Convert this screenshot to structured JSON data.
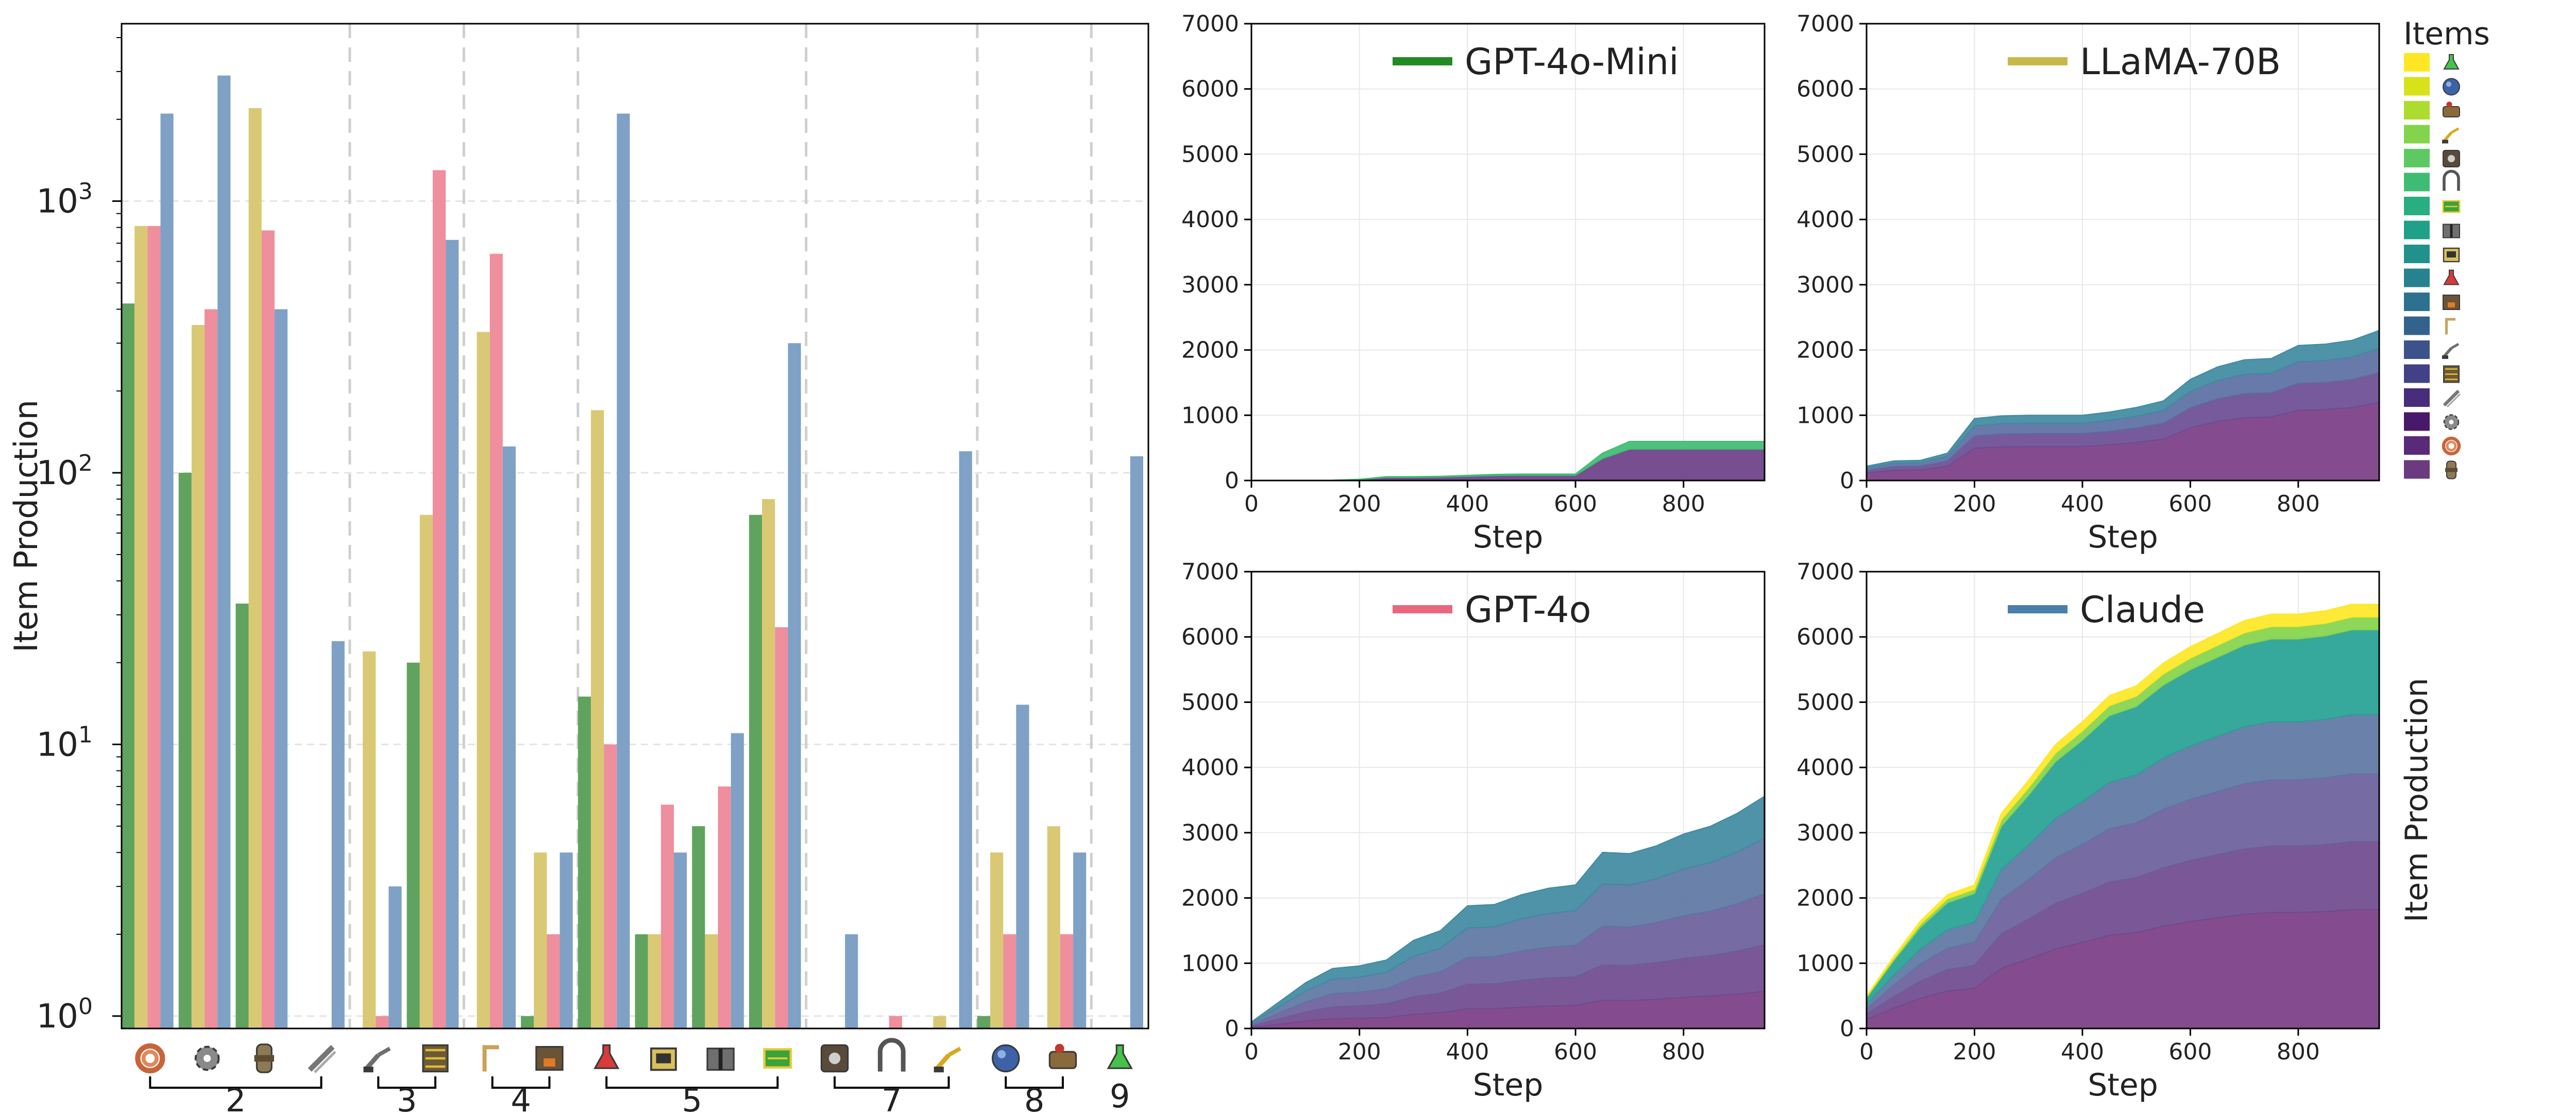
{
  "colors": {
    "GPT-4o-Mini": "#60a35e",
    "LLaMA-70B": "#d9c975",
    "GPT-4o": "#ef8e9d",
    "Claude": "#7fa1c6",
    "legend_GPT-4o-Mini": "#228b22",
    "legend_LLaMA-70B": "#c8b84a",
    "legend_GPT-4o": "#e8677d",
    "legend_Claude": "#4a7eab"
  },
  "chart_data": [
    {
      "type": "bar",
      "ylabel": "Item Production",
      "yscale": "log",
      "ylim": [
        0.9,
        4500
      ],
      "ytick_labels": [
        "10^0",
        "10^1",
        "10^2",
        "10^3"
      ],
      "series_order": [
        "GPT-4o-Mini",
        "LLaMA-70B",
        "GPT-4o",
        "Claude"
      ],
      "categories": [
        "copper-cable-icon",
        "iron-gear-wheel-icon",
        "pipe-icon",
        "iron-stick-icon",
        "inserter-icon",
        "transport-belt-icon",
        "burner-mining-drill-icon",
        "stone-furnace-icon",
        "automation-science-pack-icon",
        "lab-icon",
        "electric-mining-drill-icon",
        "electronic-circuit-icon",
        "assembling-machine-icon",
        "offshore-pump-icon",
        "fast-inserter-icon",
        "steam-engine-icon",
        "boiler-icon",
        "logistic-science-pack-icon"
      ],
      "groups": [
        {
          "label": "2",
          "first": 0,
          "last": 3
        },
        {
          "label": "3",
          "first": 4,
          "last": 5
        },
        {
          "label": "4",
          "first": 6,
          "last": 7
        },
        {
          "label": "5",
          "first": 8,
          "last": 11
        },
        {
          "label": "7",
          "first": 12,
          "last": 14
        },
        {
          "label": "8",
          "first": 15,
          "last": 16
        },
        {
          "label": "9",
          "first": 17,
          "last": 17
        }
      ],
      "series": [
        {
          "name": "GPT-4o-Mini",
          "values": [
            420,
            100,
            33,
            null,
            null,
            20,
            null,
            1,
            15,
            2,
            5,
            70,
            null,
            null,
            null,
            1,
            null,
            null
          ]
        },
        {
          "name": "LLaMA-70B",
          "values": [
            810,
            350,
            2200,
            null,
            22,
            70,
            330,
            4,
            170,
            2,
            2,
            80,
            null,
            null,
            1,
            4,
            5,
            null
          ]
        },
        {
          "name": "GPT-4o",
          "values": [
            810,
            400,
            780,
            null,
            1,
            1300,
            640,
            2,
            10,
            6,
            7,
            27,
            null,
            1,
            null,
            2,
            2,
            null
          ]
        },
        {
          "name": "Claude",
          "values": [
            2100,
            2900,
            400,
            24,
            3,
            720,
            125,
            4,
            2100,
            4,
            11,
            300,
            2,
            null,
            120,
            14,
            4,
            115
          ]
        }
      ]
    },
    {
      "type": "area",
      "stacked": true,
      "title": "GPT-4o-Mini",
      "xlabel": "Step",
      "ylabel": "",
      "xlim": [
        0,
        950
      ],
      "ylim": [
        0,
        7000
      ],
      "xticks": [
        0,
        200,
        400,
        600,
        800
      ],
      "yticks": [
        0,
        1000,
        2000,
        3000,
        4000,
        5000,
        6000,
        7000
      ],
      "x": [
        0,
        50,
        100,
        150,
        200,
        250,
        300,
        350,
        400,
        450,
        500,
        550,
        600,
        650,
        700,
        750,
        800,
        850,
        900,
        950
      ],
      "total": [
        0,
        0,
        0,
        5,
        20,
        60,
        60,
        65,
        80,
        95,
        100,
        100,
        100,
        420,
        600,
        600,
        600,
        600,
        600,
        600
      ]
    },
    {
      "type": "area",
      "stacked": true,
      "title": "LLaMA-70B",
      "xlabel": "Step",
      "ylabel": "",
      "xlim": [
        0,
        950
      ],
      "ylim": [
        0,
        7000
      ],
      "xticks": [
        0,
        200,
        400,
        600,
        800
      ],
      "yticks": [
        0,
        1000,
        2000,
        3000,
        4000,
        5000,
        6000,
        7000
      ],
      "x": [
        0,
        50,
        100,
        150,
        200,
        250,
        300,
        350,
        400,
        450,
        500,
        550,
        600,
        650,
        700,
        750,
        800,
        850,
        900,
        950
      ],
      "total": [
        220,
        300,
        310,
        420,
        950,
        990,
        1000,
        1000,
        1000,
        1050,
        1120,
        1220,
        1550,
        1740,
        1850,
        1870,
        2070,
        2090,
        2150,
        2300
      ]
    },
    {
      "type": "area",
      "stacked": true,
      "title": "GPT-4o",
      "xlabel": "Step",
      "ylabel": "",
      "xlim": [
        0,
        950
      ],
      "ylim": [
        0,
        7000
      ],
      "xticks": [
        0,
        200,
        400,
        600,
        800
      ],
      "yticks": [
        0,
        1000,
        2000,
        3000,
        4000,
        5000,
        6000,
        7000
      ],
      "x": [
        0,
        50,
        100,
        150,
        200,
        250,
        300,
        350,
        400,
        450,
        500,
        550,
        600,
        650,
        700,
        750,
        800,
        850,
        900,
        950
      ],
      "total": [
        100,
        400,
        700,
        920,
        960,
        1050,
        1350,
        1500,
        1880,
        1900,
        2050,
        2150,
        2200,
        2700,
        2680,
        2800,
        2980,
        3100,
        3300,
        3560
      ]
    },
    {
      "type": "area",
      "stacked": true,
      "title": "Claude",
      "xlabel": "Step",
      "ylabel": "Item Production",
      "xlim": [
        0,
        950
      ],
      "ylim": [
        0,
        7000
      ],
      "xticks": [
        0,
        200,
        400,
        600,
        800
      ],
      "yticks": [
        0,
        1000,
        2000,
        3000,
        4000,
        5000,
        6000,
        7000
      ],
      "x": [
        0,
        50,
        100,
        150,
        200,
        250,
        300,
        350,
        400,
        450,
        500,
        550,
        600,
        650,
        700,
        750,
        800,
        850,
        900,
        950
      ],
      "total": [
        500,
        1100,
        1650,
        2050,
        2200,
        3300,
        3800,
        4350,
        4700,
        5100,
        5250,
        5600,
        5850,
        6050,
        6250,
        6350,
        6350,
        6400,
        6500,
        6500
      ]
    }
  ],
  "legend": {
    "title": "Items",
    "entries": [
      "logistic-science-pack-icon",
      "steam-engine-icon",
      "boiler-icon",
      "fast-inserter-icon",
      "assembling-machine-icon",
      "offshore-pump-icon",
      "electronic-circuit-icon",
      "electric-mining-drill-icon",
      "lab-icon",
      "automation-science-pack-icon",
      "stone-furnace-icon",
      "burner-mining-drill-icon",
      "inserter-icon",
      "transport-belt-icon",
      "iron-stick-icon",
      "iron-gear-wheel-icon",
      "copper-cable-icon",
      "pipe-icon"
    ],
    "colors": [
      "#fde725",
      "#d7e219",
      "#addc30",
      "#84d44b",
      "#5ec962",
      "#3fbc73",
      "#28ae80",
      "#1fa088",
      "#21918c",
      "#26828e",
      "#2c728e",
      "#33638d",
      "#3b528b",
      "#424086",
      "#472d7b",
      "#48186a",
      "#5a2a78",
      "#6b3a7f"
    ]
  }
}
